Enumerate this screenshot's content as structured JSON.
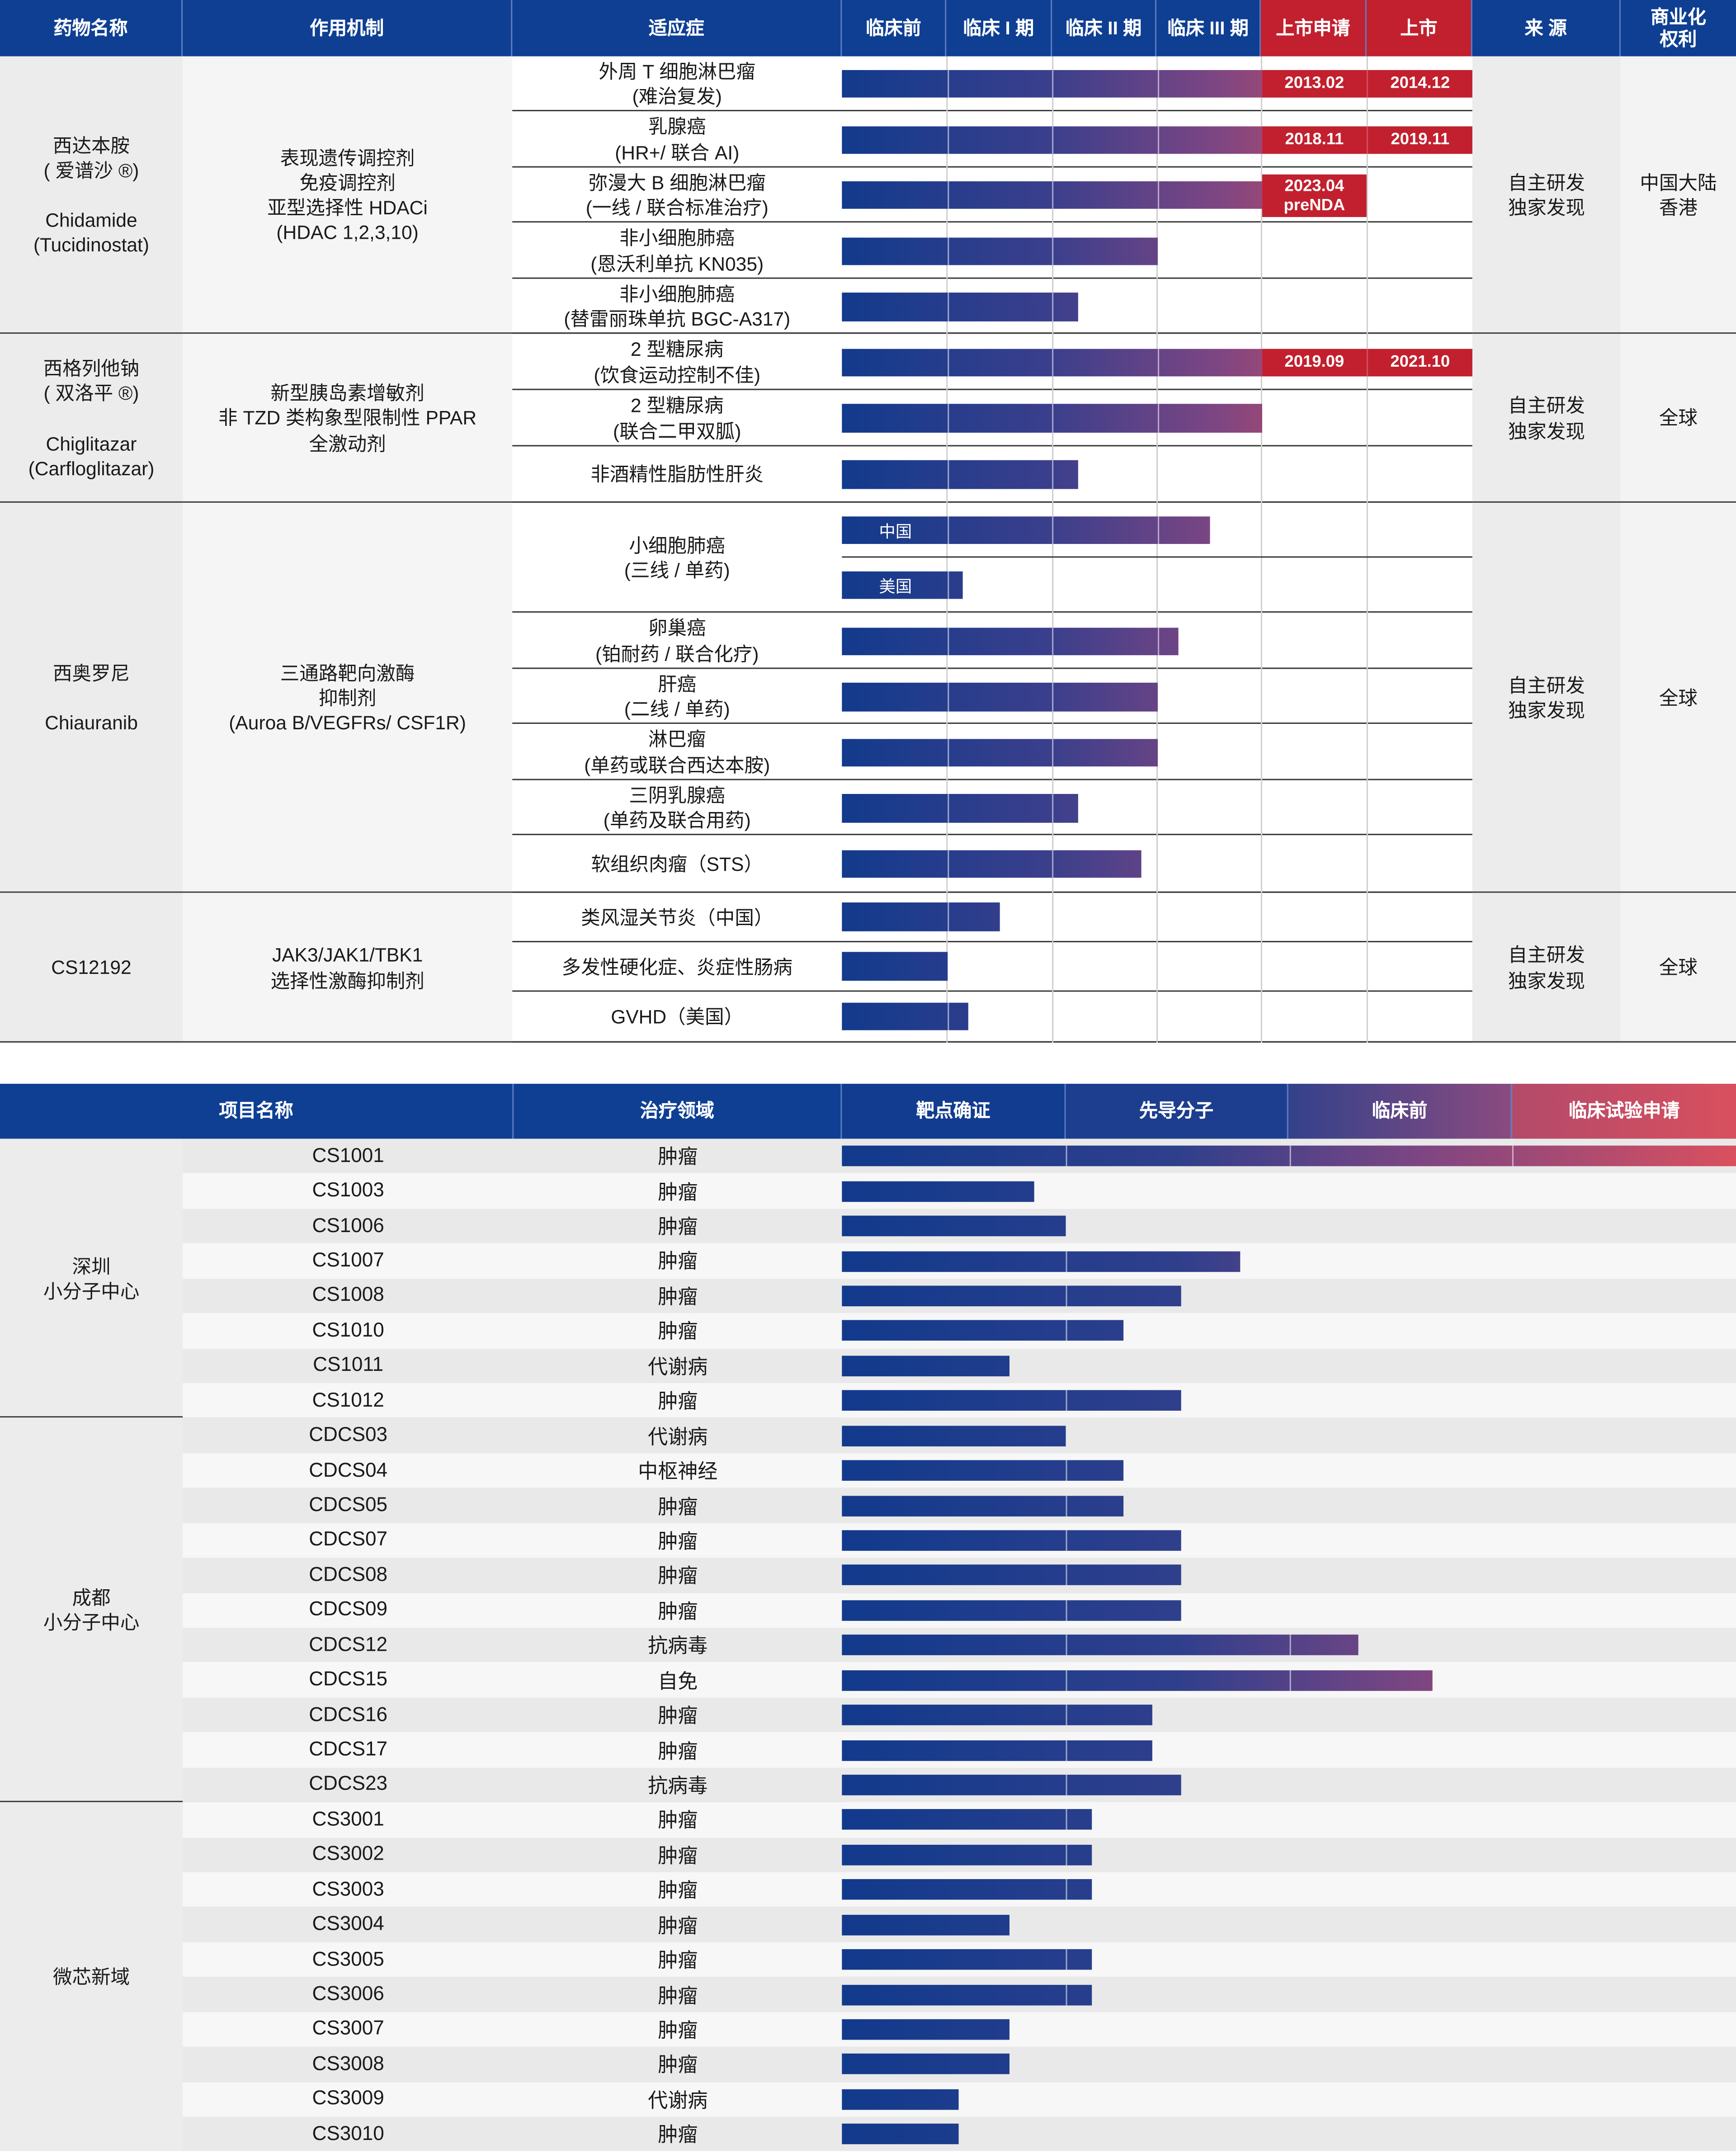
{
  "table1": {
    "headers": [
      "药物名称",
      "作用机制",
      "适应症",
      "临床前",
      "临床 I 期",
      "临床 II 期",
      "临床 III 期",
      "上市申请",
      "上市",
      "来 源",
      "商业化\n权利"
    ],
    "groups": [
      {
        "drug": "西达本胺\n( 爱谱沙 ®)\n\nChidamide\n(Tucidinostat)",
        "mechanism": "表现遗传调控剂\n免疫调控剂\n亚型选择性 HDACi\n(HDAC 1,2,3,10)",
        "source": "自主研发\n独家发现",
        "rights": "中国大陆\n香港"
      },
      {
        "drug": "西格列他钠\n( 双洛平 ®)\n\nChiglitazar\n(Carfloglitazar)",
        "mechanism": "新型胰岛素增敏剂\n非 TZD 类构象型限制性 PPAR\n全激动剂",
        "source": "自主研发\n独家发现",
        "rights": "全球"
      },
      {
        "drug": "西奥罗尼\n\nChiauranib",
        "mechanism": "三通路靶向激酶\n抑制剂\n(Auroa B/VEGFRs/ CSF1R)",
        "source": "自主研发\n独家发现",
        "rights": "全球"
      },
      {
        "drug": "CS12192",
        "mechanism": "JAK3/JAK1/TBK1\n选择性激酶抑制剂",
        "source": "自主研发\n独家发现",
        "rights": "全球"
      }
    ],
    "indications": [
      "外周 T 细胞淋巴瘤\n(难治复发)",
      "乳腺癌\n(HR+/ 联合 AI)",
      "弥漫大 B 细胞淋巴瘤\n(一线 / 联合标准治疗)",
      "非小细胞肺癌\n(恩沃利单抗 KN035)",
      "非小细胞肺癌\n(替雷丽珠单抗 BGC-A317)",
      "2 型糖尿病\n(饮食运动控制不佳)",
      "2 型糖尿病\n(联合二甲双胍)",
      "非酒精性脂肪性肝炎",
      "小细胞肺癌\n(三线 / 单药)",
      "卵巢癌\n(铂耐药 / 联合化疗)",
      "肝癌\n(二线 / 单药)",
      "淋巴瘤\n(单药或联合西达本胺)",
      "三阴乳腺癌\n(单药及联合用药)",
      "软组织肉瘤（STS）",
      "类风湿关节炎（中国）",
      "多发性硬化症、炎症性肠病",
      "GVHD（美国）"
    ],
    "badges": {
      "ptcl_filing": "2013.02",
      "ptcl_launch": "2014.12",
      "breast_filing": "2018.11",
      "breast_launch": "2019.11",
      "dlbcl_filing": "2023.04\npreNDA",
      "t2d_filing": "2019.09",
      "t2d_launch": "2021.10"
    },
    "region_labels": {
      "china": "中国",
      "usa": "美国"
    }
  },
  "table2": {
    "headers": [
      "项目名称",
      "治疗领域",
      "靶点确证",
      "先导分子",
      "临床前",
      "临床试验申请"
    ],
    "centers": [
      "深圳\n小分子中心",
      "成都\n小分子中心",
      "微芯新域"
    ],
    "rows": [
      {
        "name": "CS1001",
        "area": "肿瘤"
      },
      {
        "name": "CS1003",
        "area": "肿瘤"
      },
      {
        "name": "CS1006",
        "area": "肿瘤"
      },
      {
        "name": "CS1007",
        "area": "肿瘤"
      },
      {
        "name": "CS1008",
        "area": "肿瘤"
      },
      {
        "name": "CS1010",
        "area": "肿瘤"
      },
      {
        "name": "CS1011",
        "area": "代谢病"
      },
      {
        "name": "CS1012",
        "area": "肿瘤"
      },
      {
        "name": "CDCS03",
        "area": "代谢病"
      },
      {
        "name": "CDCS04",
        "area": "中枢神经"
      },
      {
        "name": "CDCS05",
        "area": "肿瘤"
      },
      {
        "name": "CDCS07",
        "area": "肿瘤"
      },
      {
        "name": "CDCS08",
        "area": "肿瘤"
      },
      {
        "name": "CDCS09",
        "area": "肿瘤"
      },
      {
        "name": "CDCS12",
        "area": "抗病毒"
      },
      {
        "name": "CDCS15",
        "area": "自免"
      },
      {
        "name": "CDCS16",
        "area": "肿瘤"
      },
      {
        "name": "CDCS17",
        "area": "肿瘤"
      },
      {
        "name": "CDCS23",
        "area": "抗病毒"
      },
      {
        "name": "CS3001",
        "area": "肿瘤"
      },
      {
        "name": "CS3002",
        "area": "肿瘤"
      },
      {
        "name": "CS3003",
        "area": "肿瘤"
      },
      {
        "name": "CS3004",
        "area": "肿瘤"
      },
      {
        "name": "CS3005",
        "area": "肿瘤"
      },
      {
        "name": "CS3006",
        "area": "肿瘤"
      },
      {
        "name": "CS3007",
        "area": "肿瘤"
      },
      {
        "name": "CS3008",
        "area": "肿瘤"
      },
      {
        "name": "CS3009",
        "area": "代谢病"
      },
      {
        "name": "CS3010",
        "area": "肿瘤"
      }
    ]
  },
  "chart_data": [
    {
      "type": "bar",
      "title": "",
      "stages": [
        "临床前",
        "临床 I 期",
        "临床 II 期",
        "临床 III 期",
        "上市申请",
        "上市"
      ],
      "categories": [
        "外周 T 细胞淋巴瘤",
        "乳腺癌",
        "弥漫大 B 细胞淋巴瘤",
        "非小细胞肺癌 KN035",
        "非小细胞肺癌 BGC-A317",
        "2 型糖尿病 饮食运动",
        "2 型糖尿病 联合二甲双胍",
        "非酒精性脂肪性肝炎",
        "小细胞肺癌 中国",
        "小细胞肺癌 美国",
        "卵巢癌",
        "肝癌",
        "淋巴瘤",
        "三阴乳腺癌",
        "软组织肉瘤",
        "类风湿关节炎",
        "多发性硬化症、炎症性肠病",
        "GVHD"
      ],
      "values": [
        6.0,
        6.0,
        4.0,
        3.0,
        2.25,
        6.0,
        4.0,
        2.25,
        3.5,
        1.15,
        3.2,
        3.0,
        3.0,
        2.25,
        2.85,
        1.5,
        1.0,
        1.2
      ],
      "ylim": [
        0,
        6
      ]
    },
    {
      "type": "bar",
      "title": "",
      "stages": [
        "靶点确证",
        "先导分子",
        "临床前",
        "临床试验申请"
      ],
      "categories": [
        "CS1001",
        "CS1003",
        "CS1006",
        "CS1007",
        "CS1008",
        "CS1010",
        "CS1011",
        "CS1012",
        "CDCS03",
        "CDCS04",
        "CDCS05",
        "CDCS07",
        "CDCS08",
        "CDCS09",
        "CDCS12",
        "CDCS15",
        "CDCS16",
        "CDCS17",
        "CDCS23",
        "CS3001",
        "CS3002",
        "CS3003",
        "CS3004",
        "CS3005",
        "CS3006",
        "CS3007",
        "CS3008",
        "CS3009",
        "CS3010"
      ],
      "values": [
        4.0,
        0.86,
        1.0,
        1.78,
        1.52,
        1.26,
        0.75,
        1.52,
        1.0,
        1.26,
        1.26,
        1.52,
        1.52,
        1.52,
        2.31,
        2.64,
        1.39,
        1.39,
        1.52,
        1.12,
        1.12,
        1.12,
        0.75,
        1.12,
        1.12,
        0.75,
        0.75,
        0.52,
        0.52
      ],
      "ylim": [
        0,
        4
      ]
    }
  ]
}
